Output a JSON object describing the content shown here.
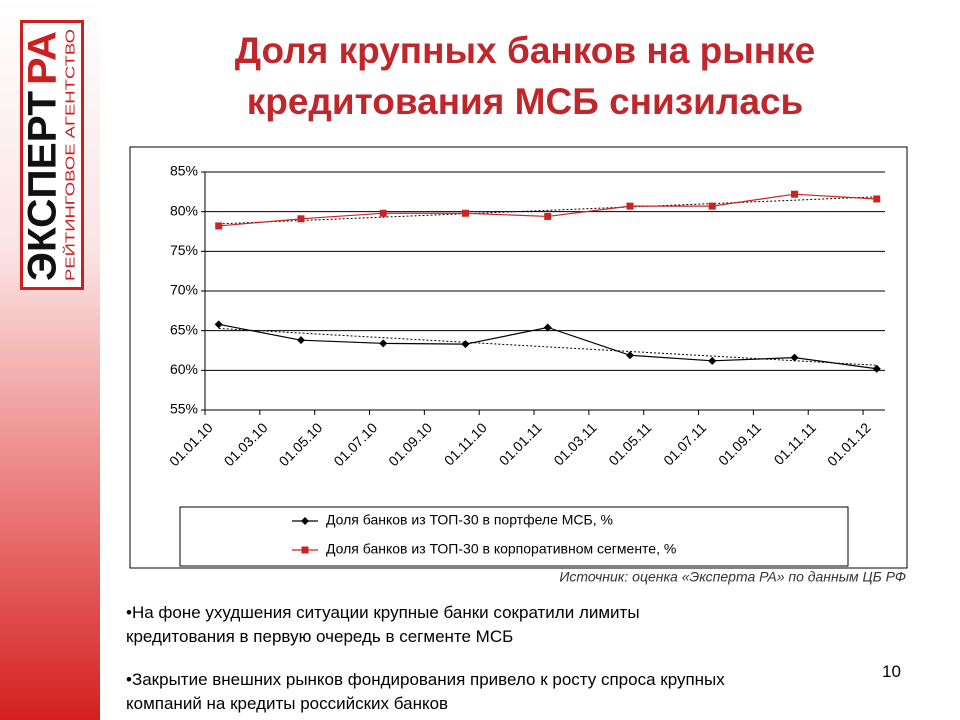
{
  "logo": {
    "word": "ЭКСПЕРТ",
    "accent": "РА",
    "subtitle": "РЕЙТИНГОВОЕ АГЕНТСТВО"
  },
  "title_lines": [
    "Доля крупных банков на рынке",
    "кредитования МСБ снизилась"
  ],
  "chart_data": {
    "type": "line",
    "x": [
      0.5,
      3.5,
      6.5,
      9.5,
      12.5,
      15.5,
      18.5,
      21.5,
      24.5
    ],
    "xlim": [
      0,
      24.8
    ],
    "xticks": [
      {
        "value": 0,
        "label": "01.01.10"
      },
      {
        "value": 2,
        "label": "01.03.10"
      },
      {
        "value": 4,
        "label": "01.05.10"
      },
      {
        "value": 6,
        "label": "01.07.10"
      },
      {
        "value": 8,
        "label": "01.09.10"
      },
      {
        "value": 10,
        "label": "01.11.10"
      },
      {
        "value": 12,
        "label": "01.01.11"
      },
      {
        "value": 14,
        "label": "01.03.11"
      },
      {
        "value": 16,
        "label": "01.05.11"
      },
      {
        "value": 18,
        "label": "01.07.11"
      },
      {
        "value": 20,
        "label": "01.09.11"
      },
      {
        "value": 22,
        "label": "01.11.11"
      },
      {
        "value": 24,
        "label": "01.01.12"
      }
    ],
    "ylim": [
      55,
      85
    ],
    "yticks": [
      {
        "value": 55,
        "label": "55%"
      },
      {
        "value": 60,
        "label": "60%"
      },
      {
        "value": 65,
        "label": "65%"
      },
      {
        "value": 70,
        "label": "70%"
      },
      {
        "value": 75,
        "label": "75%"
      },
      {
        "value": 80,
        "label": "80%"
      },
      {
        "value": 85,
        "label": "85%"
      }
    ],
    "grid": true,
    "trendline": true,
    "series": [
      {
        "name": "Доля банков из ТОП-30 в портфеле МСБ, %",
        "color": "#000000",
        "marker": "diamond",
        "values": [
          65.8,
          63.8,
          63.4,
          63.3,
          65.4,
          61.9,
          61.2,
          61.6,
          60.2
        ]
      },
      {
        "name": "Доля банков из ТОП-30 в корпоративном сегменте, %",
        "color": "#cc2222",
        "marker": "square",
        "values": [
          78.2,
          79.1,
          79.8,
          79.8,
          79.4,
          80.7,
          80.7,
          82.2,
          81.6
        ]
      }
    ]
  },
  "source": "Источник: оценка «Эксперта РА» по данным ЦБ РФ",
  "bullets": [
    [
      "•На фоне ухудшения ситуации крупные банки сократили лимиты",
      "кредитования в первую очередь в сегменте МСБ"
    ],
    [
      "•Закрытие внешних рынков фондирования привело к росту спроса крупных",
      "компаний на кредиты российских банков"
    ]
  ],
  "page_number": "10"
}
